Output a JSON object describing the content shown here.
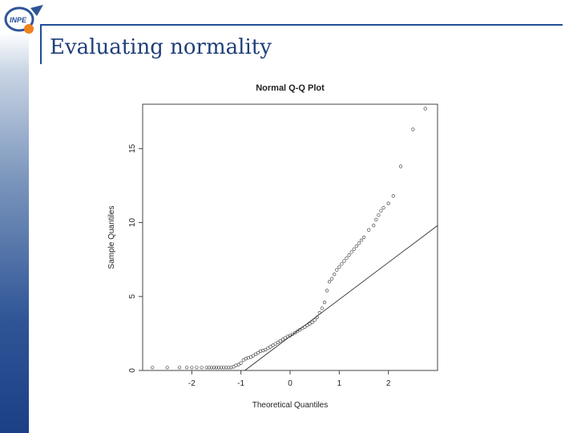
{
  "slide": {
    "title": "Evaluating normality",
    "logo_text": "INPE"
  },
  "colors": {
    "accent": "#1f4e96",
    "sidebar_dark": "#1c3f85",
    "title": "#1f3f7a",
    "logo_orange": "#f0821e"
  },
  "chart_data": {
    "type": "scatter",
    "title": "Normal Q-Q Plot",
    "xlabel": "Theoretical Quantiles",
    "ylabel": "Sample Quantiles",
    "xlim": [
      -3,
      3
    ],
    "ylim": [
      0,
      18
    ],
    "xticks": [
      -2,
      -1,
      0,
      1,
      2
    ],
    "yticks": [
      0,
      5,
      10,
      15
    ],
    "grid": false,
    "reference_line": {
      "label": "qqline",
      "intercept": 2.3,
      "slope": 2.5
    },
    "points": {
      "x": [
        -2.8,
        -2.5,
        -2.25,
        -2.1,
        -2.0,
        -1.9,
        -1.8,
        -1.7,
        -1.65,
        -1.6,
        -1.55,
        -1.5,
        -1.45,
        -1.4,
        -1.35,
        -1.3,
        -1.25,
        -1.2,
        -1.15,
        -1.1,
        -1.05,
        -1.0,
        -0.95,
        -0.9,
        -0.85,
        -0.8,
        -0.75,
        -0.7,
        -0.65,
        -0.6,
        -0.55,
        -0.5,
        -0.45,
        -0.4,
        -0.35,
        -0.3,
        -0.25,
        -0.2,
        -0.15,
        -0.1,
        -0.05,
        0.0,
        0.05,
        0.1,
        0.15,
        0.2,
        0.25,
        0.3,
        0.35,
        0.4,
        0.45,
        0.5,
        0.55,
        0.6,
        0.65,
        0.7,
        0.75,
        0.8,
        0.85,
        0.9,
        0.95,
        1.0,
        1.05,
        1.1,
        1.15,
        1.2,
        1.25,
        1.3,
        1.35,
        1.4,
        1.45,
        1.5,
        1.6,
        1.7,
        1.75,
        1.8,
        1.85,
        1.9,
        2.0,
        2.1,
        2.25,
        2.5,
        2.75
      ],
      "y": [
        0.2,
        0.2,
        0.2,
        0.2,
        0.2,
        0.2,
        0.2,
        0.2,
        0.2,
        0.2,
        0.2,
        0.2,
        0.2,
        0.2,
        0.2,
        0.2,
        0.2,
        0.2,
        0.25,
        0.35,
        0.4,
        0.5,
        0.7,
        0.8,
        0.85,
        0.9,
        1.0,
        1.1,
        1.2,
        1.3,
        1.35,
        1.4,
        1.5,
        1.6,
        1.7,
        1.8,
        1.9,
        2.0,
        2.1,
        2.2,
        2.3,
        2.35,
        2.45,
        2.55,
        2.65,
        2.75,
        2.85,
        2.95,
        3.05,
        3.15,
        3.25,
        3.4,
        3.6,
        3.9,
        4.2,
        4.6,
        5.4,
        6.0,
        6.2,
        6.5,
        6.8,
        7.0,
        7.2,
        7.4,
        7.6,
        7.8,
        8.0,
        8.2,
        8.4,
        8.6,
        8.8,
        9.0,
        9.5,
        9.8,
        10.2,
        10.5,
        10.8,
        11.0,
        11.3,
        11.8,
        13.8,
        16.3,
        17.7
      ]
    }
  }
}
